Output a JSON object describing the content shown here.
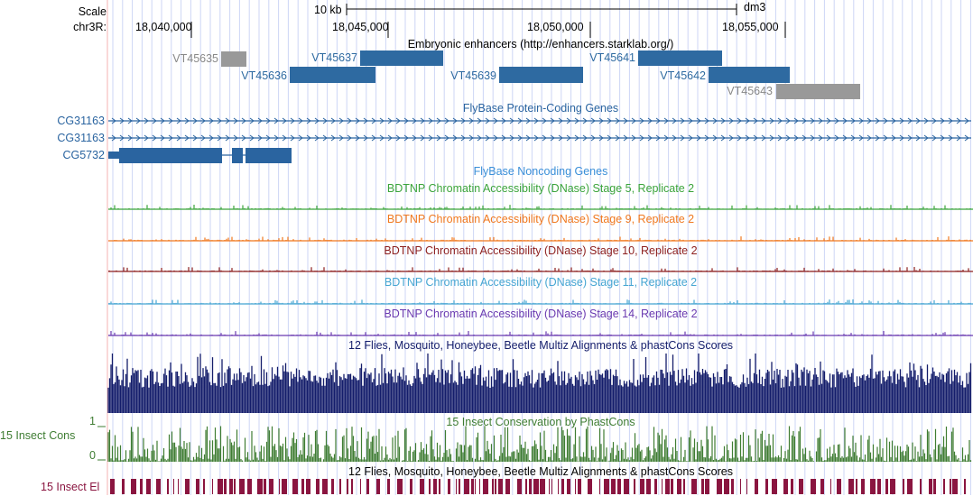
{
  "colors": {
    "gene_blue": "#2a64a0",
    "enhancer_blue": "#2e6aa1",
    "enhancer_grey": "#999999",
    "grey_text": "#888888",
    "stage5": "#3ba43b",
    "stage9": "#f0781e",
    "stage10": "#8c1f1f",
    "stage11": "#45a5d2",
    "stage14": "#6a3ab0",
    "multiz": "#141d6b",
    "phastcons": "#3f7d33",
    "elements": "#8a1540",
    "grid": "#cdd6f6",
    "left_margin": "#f5b3b3"
  },
  "ruler": {
    "scale_label": "Scale",
    "chrom_label": "chr3R:",
    "scalebar_label": "10 kb",
    "assembly": "dm3",
    "positions": [
      "18,040,000",
      "18,045,000",
      "18,050,000",
      "18,055,000"
    ]
  },
  "enhancers": {
    "title": "Embryonic enhancers (http://enhancers.starklab.org/)",
    "items": [
      {
        "name": "VT45635",
        "color": "grey"
      },
      {
        "name": "VT45636",
        "color": "blue"
      },
      {
        "name": "VT45637",
        "color": "blue"
      },
      {
        "name": "VT45639",
        "color": "blue"
      },
      {
        "name": "VT45641",
        "color": "blue"
      },
      {
        "name": "VT45642",
        "color": "blue"
      },
      {
        "name": "VT45643",
        "color": "grey"
      }
    ]
  },
  "protein_genes": {
    "title": "FlyBase Protein-Coding Genes",
    "genes": [
      "CG31163",
      "CG31163",
      "CG5732"
    ]
  },
  "noncoding": {
    "title": "FlyBase Noncoding Genes"
  },
  "dnase_tracks": [
    {
      "title": "BDTNP Chromatin Accessibility (DNase) Stage 5, Replicate 2",
      "color": "#3ba43b"
    },
    {
      "title": "BDTNP Chromatin Accessibility (DNase) Stage 9, Replicate 2",
      "color": "#f0781e"
    },
    {
      "title": "BDTNP Chromatin Accessibility (DNase) Stage 10, Replicate 2",
      "color": "#8c1f1f"
    },
    {
      "title": "BDTNP Chromatin Accessibility (DNase) Stage 11, Replicate 2",
      "color": "#45a5d2"
    },
    {
      "title": "BDTNP Chromatin Accessibility (DNase) Stage 14, Replicate 2",
      "color": "#6a3ab0"
    }
  ],
  "multiz": {
    "title": "12 Flies, Mosquito, Honeybee, Beetle Multiz Alignments & phastCons Scores"
  },
  "phastcons": {
    "title": "15 Insect Conservation by PhastCons",
    "side_label": "15 Insect Cons",
    "max_label": "1",
    "min_label": "0"
  },
  "elements": {
    "title": "12 Flies, Mosquito, Honeybee, Beetle Multiz Alignments & phastCons Scores",
    "side_label": "15 Insect El"
  }
}
